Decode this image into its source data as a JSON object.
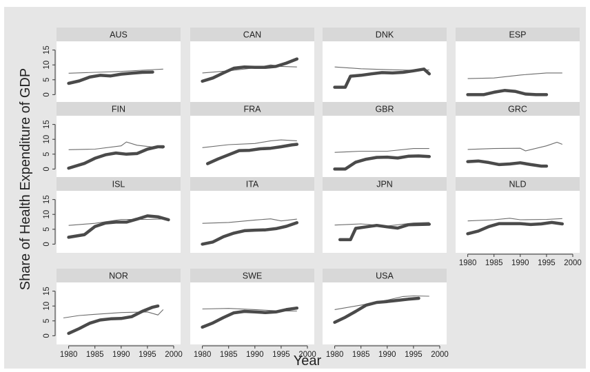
{
  "chart_data": {
    "type": "line",
    "layout": "small-multiples",
    "ylabel": "Share of Health Expenditure of GDP",
    "xlabel": "Year",
    "xlim": [
      1979,
      2000
    ],
    "ylim": [
      -2,
      17
    ],
    "x_ticks": [
      1980,
      1985,
      1990,
      1995,
      2000
    ],
    "y_ticks": [
      0,
      5,
      10,
      15
    ],
    "colors": {
      "background": "#e6e6e6",
      "panel": "#ffffff",
      "header": "#d8d8d8",
      "line": "#4a4a4a"
    },
    "panels": [
      {
        "name": "AUS",
        "thick": {
          "x": [
            1980,
            1982,
            1984,
            1986,
            1988,
            1990,
            1992,
            1994,
            1996
          ],
          "y": [
            3.8,
            4.6,
            5.9,
            6.5,
            6.3,
            6.9,
            7.2,
            7.5,
            7.6
          ]
        },
        "thin": {
          "x": [
            1980,
            1985,
            1990,
            1995,
            1998
          ],
          "y": [
            7.2,
            7.5,
            7.8,
            8.3,
            8.6
          ]
        }
      },
      {
        "name": "CAN",
        "thick": {
          "x": [
            1980,
            1982,
            1984,
            1986,
            1988,
            1990,
            1992,
            1994,
            1996,
            1998
          ],
          "y": [
            4.5,
            5.6,
            7.3,
            8.9,
            9.3,
            9.2,
            9.2,
            9.5,
            10.6,
            12.0
          ]
        },
        "thin": {
          "x": [
            1980,
            1985,
            1990,
            1993,
            1995,
            1998
          ],
          "y": [
            7.3,
            8.0,
            9.0,
            10.0,
            9.5,
            9.3
          ]
        }
      },
      {
        "name": "DNK",
        "thick": {
          "x": [
            1980,
            1982,
            1983,
            1985,
            1987,
            1989,
            1991,
            1993,
            1995,
            1997,
            1998
          ],
          "y": [
            2.5,
            2.5,
            6.2,
            6.5,
            7.0,
            7.4,
            7.3,
            7.5,
            8.0,
            8.6,
            7.0
          ]
        },
        "thin": {
          "x": [
            1980,
            1985,
            1990,
            1995,
            1998
          ],
          "y": [
            9.3,
            8.7,
            8.4,
            8.2,
            8.3
          ]
        }
      },
      {
        "name": "ESP",
        "thick": {
          "x": [
            1980,
            1983,
            1985,
            1987,
            1989,
            1991,
            1993,
            1995
          ],
          "y": [
            0.0,
            0.0,
            0.8,
            1.4,
            1.1,
            0.2,
            0.0,
            0.0
          ]
        },
        "thin": {
          "x": [
            1980,
            1985,
            1990,
            1995,
            1998
          ],
          "y": [
            5.4,
            5.6,
            6.6,
            7.3,
            7.3
          ]
        }
      },
      {
        "name": "FIN",
        "thick": {
          "x": [
            1980,
            1983,
            1985,
            1987,
            1989,
            1991,
            1993,
            1995,
            1997,
            1998
          ],
          "y": [
            0.3,
            1.9,
            3.6,
            4.8,
            5.4,
            5.0,
            5.2,
            6.7,
            7.5,
            7.5
          ]
        },
        "thin": {
          "x": [
            1980,
            1985,
            1990,
            1991,
            1993,
            1995,
            1998
          ],
          "y": [
            6.5,
            6.7,
            7.8,
            9.1,
            8.0,
            7.6,
            7.0
          ]
        }
      },
      {
        "name": "FRA",
        "thick": {
          "x": [
            1981,
            1983,
            1985,
            1987,
            1989,
            1991,
            1993,
            1995,
            1997,
            1998
          ],
          "y": [
            1.8,
            3.4,
            4.8,
            6.2,
            6.3,
            6.8,
            7.0,
            7.5,
            8.1,
            8.3
          ]
        },
        "thin": {
          "x": [
            1980,
            1985,
            1990,
            1993,
            1995,
            1998
          ],
          "y": [
            7.2,
            8.2,
            8.6,
            9.5,
            9.8,
            9.5
          ]
        }
      },
      {
        "name": "GBR",
        "thick": {
          "x": [
            1980,
            1982,
            1984,
            1986,
            1988,
            1990,
            1992,
            1994,
            1996,
            1998
          ],
          "y": [
            0.0,
            0.0,
            2.3,
            3.3,
            3.9,
            4.0,
            3.7,
            4.3,
            4.4,
            4.2
          ]
        },
        "thin": {
          "x": [
            1980,
            1985,
            1990,
            1995,
            1998
          ],
          "y": [
            5.6,
            6.0,
            6.0,
            6.9,
            6.9
          ]
        }
      },
      {
        "name": "GRC",
        "thick": {
          "x": [
            1980,
            1982,
            1984,
            1986,
            1988,
            1990,
            1992,
            1994,
            1995
          ],
          "y": [
            2.5,
            2.7,
            2.2,
            1.5,
            1.7,
            2.1,
            1.5,
            1.0,
            1.0
          ]
        },
        "thin": {
          "x": [
            1980,
            1985,
            1990,
            1991,
            1995,
            1997,
            1998
          ],
          "y": [
            6.6,
            6.9,
            7.0,
            6.1,
            7.8,
            9.0,
            8.3
          ]
        }
      },
      {
        "name": "ISL",
        "thick": {
          "x": [
            1980,
            1983,
            1985,
            1987,
            1989,
            1991,
            1993,
            1995,
            1997,
            1999
          ],
          "y": [
            2.3,
            3.2,
            5.9,
            7.1,
            7.4,
            7.4,
            8.4,
            9.5,
            9.2,
            8.2
          ]
        },
        "thin": {
          "x": [
            1980,
            1985,
            1990,
            1995,
            1999
          ],
          "y": [
            6.3,
            7.0,
            8.3,
            8.3,
            8.5
          ]
        }
      },
      {
        "name": "ITA",
        "thick": {
          "x": [
            1980,
            1982,
            1984,
            1986,
            1988,
            1990,
            1992,
            1994,
            1996,
            1998
          ],
          "y": [
            0.0,
            0.7,
            2.5,
            3.7,
            4.5,
            4.7,
            4.8,
            5.2,
            6.0,
            7.2
          ]
        },
        "thin": {
          "x": [
            1980,
            1985,
            1990,
            1993,
            1995,
            1998
          ],
          "y": [
            7.0,
            7.3,
            8.1,
            8.5,
            7.8,
            8.4
          ]
        }
      },
      {
        "name": "JPN",
        "thick": {
          "x": [
            1981,
            1983,
            1984,
            1986,
            1988,
            1990,
            1992,
            1994,
            1996,
            1998
          ],
          "y": [
            1.5,
            1.5,
            5.3,
            5.8,
            6.3,
            5.8,
            5.4,
            6.5,
            6.6,
            6.7
          ]
        },
        "thin": {
          "x": [
            1980,
            1985,
            1990,
            1995,
            1998
          ],
          "y": [
            6.4,
            6.8,
            6.1,
            7.1,
            7.3
          ]
        }
      },
      {
        "name": "NLD",
        "thick": {
          "x": [
            1980,
            1982,
            1984,
            1986,
            1988,
            1990,
            1992,
            1994,
            1996,
            1998
          ],
          "y": [
            3.5,
            4.4,
            5.9,
            6.9,
            6.9,
            6.9,
            6.6,
            6.8,
            7.3,
            6.8
          ]
        },
        "thin": {
          "x": [
            1980,
            1985,
            1988,
            1990,
            1995,
            1998
          ],
          "y": [
            7.8,
            8.2,
            8.7,
            8.2,
            8.3,
            8.6
          ]
        }
      },
      {
        "name": "NOR",
        "thick": {
          "x": [
            1980,
            1982,
            1984,
            1986,
            1988,
            1990,
            1992,
            1994,
            1996,
            1997
          ],
          "y": [
            0.8,
            2.4,
            4.2,
            5.3,
            5.7,
            5.8,
            6.4,
            8.2,
            9.6,
            10.0
          ]
        },
        "thin": {
          "x": [
            1979,
            1982,
            1985,
            1990,
            1995,
            1997,
            1998
          ],
          "y": [
            6.0,
            6.8,
            7.2,
            7.8,
            8.0,
            7.0,
            8.8
          ]
        }
      },
      {
        "name": "SWE",
        "thick": {
          "x": [
            1980,
            1982,
            1984,
            1986,
            1988,
            1990,
            1992,
            1994,
            1996,
            1998
          ],
          "y": [
            2.9,
            4.3,
            6.1,
            7.7,
            8.2,
            8.0,
            7.8,
            8.0,
            8.8,
            9.3
          ]
        },
        "thin": {
          "x": [
            1980,
            1985,
            1990,
            1995,
            1998
          ],
          "y": [
            9.0,
            9.2,
            8.8,
            8.3,
            8.3
          ]
        }
      },
      {
        "name": "USA",
        "thick": {
          "x": [
            1980,
            1982,
            1984,
            1986,
            1988,
            1990,
            1992,
            1994,
            1996
          ],
          "y": [
            4.5,
            6.2,
            8.2,
            10.3,
            11.2,
            11.5,
            11.9,
            12.3,
            12.6
          ]
        },
        "thin": {
          "x": [
            1980,
            1985,
            1990,
            1993,
            1995,
            1998
          ],
          "y": [
            8.8,
            10.3,
            12.0,
            13.2,
            13.4,
            13.3
          ]
        }
      }
    ]
  }
}
